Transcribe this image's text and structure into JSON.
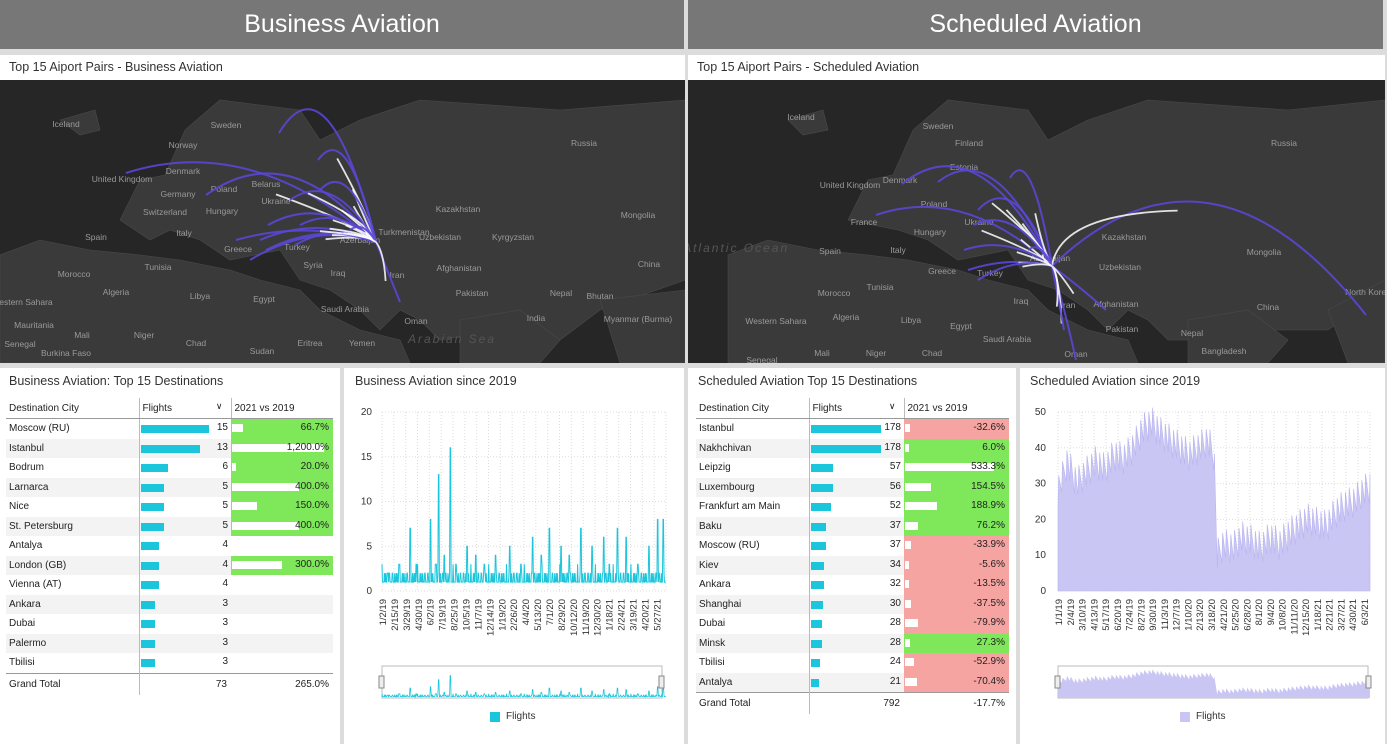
{
  "headers": {
    "left": "Business Aviation",
    "right": "Scheduled Aviation"
  },
  "maps": {
    "left_title": "Top 15 Aiport Pairs - Business Aviation",
    "right_title": "Top 15 Aiport Pairs - Scheduled Aviation",
    "left_labels": [
      "Iceland",
      "Sweden",
      "Norway",
      "Denmark",
      "United Kingdom",
      "Poland",
      "Belarus",
      "Germany",
      "Switzerland",
      "Hungary",
      "Ukraine",
      "Italy",
      "Spain",
      "Greece",
      "Turkey",
      "Azerbaijan",
      "Morocco",
      "Tunisia",
      "Syria",
      "Iraq",
      "Iran",
      "Algeria",
      "Libya",
      "Egypt",
      "Saudi Arabia",
      "Oman",
      "Western Sahara",
      "Mauritania",
      "Mali",
      "Niger",
      "Chad",
      "Sudan",
      "Eritrea",
      "Yemen",
      "Senegal",
      "Burkina Faso",
      "Russia",
      "Kazakhstan",
      "Uzbekistan",
      "Kyrgyzstan",
      "Mongolia",
      "Afghanistan",
      "Pakistan",
      "India",
      "Nepal",
      "Bhutan",
      "China",
      "Myanmar (Burma)",
      "Turkmenistan",
      "Arabian Sea"
    ],
    "right_labels": [
      "Iceland",
      "Sweden",
      "Finland",
      "Estonia",
      "Denmark",
      "United Kingdom",
      "Poland",
      "France",
      "Hungary",
      "Ukraine",
      "Spain",
      "Italy",
      "Greece",
      "Turkey",
      "Azerbaijan",
      "Morocco",
      "Tunisia",
      "Iraq",
      "Iran",
      "Algeria",
      "Libya",
      "Egypt",
      "Saudi Arabia",
      "Oman",
      "Western Sahara",
      "Mali",
      "Niger",
      "Chad",
      "Senegal",
      "Russia",
      "Kazakhstan",
      "Uzbekistan",
      "Mongolia",
      "Afghanistan",
      "Pakistan",
      "Nepal",
      "China",
      "Bangladesh",
      "North Korea",
      "North Atlantic Ocean"
    ]
  },
  "business_table": {
    "title": "Business Aviation: Top 15 Destinations",
    "col_city": "Destination City",
    "col_flights": "Flights",
    "col_change": "2021 vs 2019",
    "rows": [
      {
        "city": "Moscow (RU)",
        "flights": 15,
        "change": "66.7%",
        "pct": 66.7
      },
      {
        "city": "Istanbul",
        "flights": 13,
        "change": "1,200.0%",
        "pct": 1200.0
      },
      {
        "city": "Bodrum",
        "flights": 6,
        "change": "20.0%",
        "pct": 20.0
      },
      {
        "city": "Larnarca",
        "flights": 5,
        "change": "400.0%",
        "pct": 400.0
      },
      {
        "city": "Nice",
        "flights": 5,
        "change": "150.0%",
        "pct": 150.0
      },
      {
        "city": "St. Petersburg",
        "flights": 5,
        "change": "400.0%",
        "pct": 400.0
      },
      {
        "city": "Antalya",
        "flights": 4,
        "change": "",
        "pct": null
      },
      {
        "city": "London (GB)",
        "flights": 4,
        "change": "300.0%",
        "pct": 300.0
      },
      {
        "city": "Vienna (AT)",
        "flights": 4,
        "change": "",
        "pct": null
      },
      {
        "city": "Ankara",
        "flights": 3,
        "change": "",
        "pct": null
      },
      {
        "city": "Dubai",
        "flights": 3,
        "change": "",
        "pct": null
      },
      {
        "city": "Palermo",
        "flights": 3,
        "change": "",
        "pct": null
      },
      {
        "city": "Tbilisi",
        "flights": 3,
        "change": "",
        "pct": null
      }
    ],
    "grand_total_label": "Grand Total",
    "grand_total_flights": "73",
    "grand_total_change": "265.0%"
  },
  "scheduled_table": {
    "title": "Scheduled Aviation Top 15 Destinations",
    "col_city": "Destination City",
    "col_flights": "Flights",
    "col_change": "2021 vs 2019",
    "rows": [
      {
        "city": "Istanbul",
        "flights": 178,
        "change": "-32.6%",
        "pct": -32.6
      },
      {
        "city": "Nakhchivan",
        "flights": 178,
        "change": "6.0%",
        "pct": 6.0
      },
      {
        "city": "Leipzig",
        "flights": 57,
        "change": "533.3%",
        "pct": 533.3
      },
      {
        "city": "Luxembourg",
        "flights": 56,
        "change": "154.5%",
        "pct": 154.5
      },
      {
        "city": "Frankfurt am Main",
        "flights": 52,
        "change": "188.9%",
        "pct": 188.9
      },
      {
        "city": "Baku",
        "flights": 37,
        "change": "76.2%",
        "pct": 76.2
      },
      {
        "city": "Moscow (RU)",
        "flights": 37,
        "change": "-33.9%",
        "pct": -33.9
      },
      {
        "city": "Kiev",
        "flights": 34,
        "change": "-5.6%",
        "pct": -5.6
      },
      {
        "city": "Ankara",
        "flights": 32,
        "change": "-13.5%",
        "pct": -13.5
      },
      {
        "city": "Shanghai",
        "flights": 30,
        "change": "-37.5%",
        "pct": -37.5
      },
      {
        "city": "Dubai",
        "flights": 28,
        "change": "-79.9%",
        "pct": -79.9
      },
      {
        "city": "Minsk",
        "flights": 28,
        "change": "27.3%",
        "pct": 27.3
      },
      {
        "city": "Tbilisi",
        "flights": 24,
        "change": "-52.9%",
        "pct": -52.9
      },
      {
        "city": "Antalya",
        "flights": 21,
        "change": "-70.4%",
        "pct": -70.4
      }
    ],
    "grand_total_label": "Grand Total",
    "grand_total_flights": "792",
    "grand_total_change": "-17.7%"
  },
  "colors": {
    "bar": "#1bc6dc",
    "positive": "#7ee85a",
    "negative": "#f6a4a2",
    "scheduled_area": "#c9c6f4",
    "arc_start": "#5a47d6",
    "arc_end": "#ffffff"
  },
  "chart_data": [
    {
      "type": "line",
      "title": "Business Aviation since 2019",
      "series": [
        {
          "name": "Flights",
          "color": "#1bc6dc",
          "baseline": 1,
          "peaks": [
            [
              0.02,
              2
            ],
            [
              0.06,
              3
            ],
            [
              0.1,
              7
            ],
            [
              0.12,
              3
            ],
            [
              0.17,
              8
            ],
            [
              0.19,
              3
            ],
            [
              0.2,
              13
            ],
            [
              0.22,
              4
            ],
            [
              0.24,
              16
            ],
            [
              0.26,
              3
            ],
            [
              0.3,
              5
            ],
            [
              0.33,
              4
            ],
            [
              0.36,
              3
            ],
            [
              0.4,
              4
            ],
            [
              0.45,
              5
            ],
            [
              0.49,
              3
            ],
            [
              0.53,
              6
            ],
            [
              0.56,
              4
            ],
            [
              0.59,
              7
            ],
            [
              0.63,
              5
            ],
            [
              0.66,
              4
            ],
            [
              0.7,
              7
            ],
            [
              0.74,
              5
            ],
            [
              0.78,
              6
            ],
            [
              0.8,
              3
            ],
            [
              0.83,
              7
            ],
            [
              0.86,
              6
            ],
            [
              0.9,
              3
            ],
            [
              0.94,
              5
            ],
            [
              0.97,
              8
            ],
            [
              0.99,
              8
            ]
          ]
        }
      ],
      "x_ticks": [
        "1/2/19",
        "2/15/19",
        "3/29/19",
        "4/30/19",
        "6/2/19",
        "7/19/19",
        "8/25/19",
        "10/5/19",
        "11/7/19",
        "12/14/19",
        "1/19/20",
        "2/26/20",
        "4/4/20",
        "5/13/20",
        "7/1/20",
        "8/29/20",
        "10/12/20",
        "11/19/20",
        "12/30/20",
        "1/18/21",
        "2/24/21",
        "3/19/21",
        "4/20/21",
        "5/27/21"
      ],
      "ylim": [
        0,
        20
      ],
      "y_ticks": [
        0,
        5,
        10,
        15,
        20
      ],
      "legend": "Flights"
    },
    {
      "type": "area",
      "title": "Scheduled Aviation since 2019",
      "series": [
        {
          "name": "Flights",
          "color": "#c9c6f4",
          "points": [
            [
              0,
              28
            ],
            [
              0.03,
              36
            ],
            [
              0.06,
              30
            ],
            [
              0.09,
              33
            ],
            [
              0.12,
              36
            ],
            [
              0.15,
              34
            ],
            [
              0.18,
              38
            ],
            [
              0.21,
              37
            ],
            [
              0.24,
              40
            ],
            [
              0.27,
              45
            ],
            [
              0.3,
              47
            ],
            [
              0.33,
              44
            ],
            [
              0.36,
              42
            ],
            [
              0.39,
              40
            ],
            [
              0.42,
              38
            ],
            [
              0.45,
              40
            ],
            [
              0.48,
              42
            ],
            [
              0.5,
              38
            ],
            [
              0.51,
              10
            ],
            [
              0.53,
              13
            ],
            [
              0.56,
              12
            ],
            [
              0.59,
              15
            ],
            [
              0.62,
              14
            ],
            [
              0.65,
              12
            ],
            [
              0.68,
              15
            ],
            [
              0.71,
              13
            ],
            [
              0.74,
              16
            ],
            [
              0.77,
              18
            ],
            [
              0.8,
              20
            ],
            [
              0.83,
              19
            ],
            [
              0.86,
              18
            ],
            [
              0.89,
              22
            ],
            [
              0.92,
              24
            ],
            [
              0.95,
              25
            ],
            [
              0.98,
              28
            ],
            [
              1.0,
              29
            ]
          ]
        }
      ],
      "x_ticks": [
        "1/1/19",
        "2/4/19",
        "3/10/19",
        "4/13/19",
        "5/17/19",
        "6/20/19",
        "7/24/19",
        "8/27/19",
        "9/30/19",
        "11/3/19",
        "12/7/19",
        "1/10/20",
        "2/13/20",
        "3/18/20",
        "4/21/20",
        "5/25/20",
        "6/28/20",
        "8/1/20",
        "9/4/20",
        "10/8/20",
        "11/11/20",
        "12/15/20",
        "1/18/21",
        "2/21/21",
        "3/27/21",
        "4/30/21",
        "6/3/21"
      ],
      "ylim": [
        0,
        50
      ],
      "y_ticks": [
        0,
        10,
        20,
        30,
        40,
        50
      ],
      "legend": "Flights"
    }
  ]
}
